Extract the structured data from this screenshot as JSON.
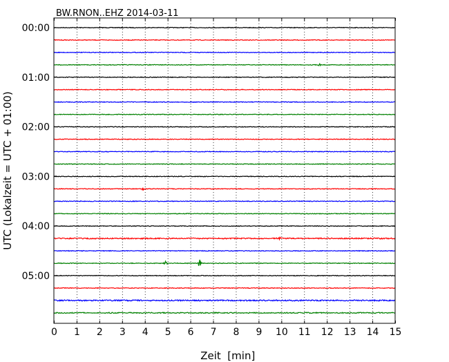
{
  "chart_data": {
    "type": "line",
    "title": "BW.RNON..EHZ 2014-03-11",
    "xlabel": "Zeit  [min]",
    "ylabel": "UTC (Lokalzeit = UTC + 01:00)",
    "xlim": [
      0,
      15
    ],
    "x_ticks": [
      "0",
      "1",
      "2",
      "3",
      "4",
      "5",
      "6",
      "7",
      "8",
      "9",
      "10",
      "11",
      "12",
      "13",
      "14",
      "15"
    ],
    "y_tick_labels": [
      "00:00",
      "01:00",
      "02:00",
      "03:00",
      "04:00",
      "05:00"
    ],
    "grid": "vertical dotted",
    "trace_colors": [
      "#000000",
      "#ff0000",
      "#0000ff",
      "#008000"
    ],
    "traces": [
      {
        "start": "00:00",
        "color": "#000000"
      },
      {
        "start": "00:15",
        "color": "#ff0000"
      },
      {
        "start": "00:30",
        "color": "#0000ff"
      },
      {
        "start": "00:45",
        "color": "#008000",
        "events": [
          {
            "t": 11.7,
            "amp": 2
          }
        ]
      },
      {
        "start": "01:00",
        "color": "#000000"
      },
      {
        "start": "01:15",
        "color": "#ff0000"
      },
      {
        "start": "01:30",
        "color": "#0000ff"
      },
      {
        "start": "01:45",
        "color": "#008000"
      },
      {
        "start": "02:00",
        "color": "#000000"
      },
      {
        "start": "02:15",
        "color": "#ff0000"
      },
      {
        "start": "02:30",
        "color": "#0000ff"
      },
      {
        "start": "02:45",
        "color": "#008000"
      },
      {
        "start": "03:00",
        "color": "#000000"
      },
      {
        "start": "03:15",
        "color": "#ff0000",
        "events": [
          {
            "t": 3.9,
            "amp": 3
          }
        ]
      },
      {
        "start": "03:30",
        "color": "#0000ff"
      },
      {
        "start": "03:45",
        "color": "#008000"
      },
      {
        "start": "04:00",
        "color": "#000000"
      },
      {
        "start": "04:15",
        "color": "#ff0000",
        "events": [
          {
            "t": 9.9,
            "amp": 5
          }
        ],
        "noise": 1.6
      },
      {
        "start": "04:30",
        "color": "#0000ff"
      },
      {
        "start": "04:45",
        "color": "#008000",
        "events": [
          {
            "t": 4.9,
            "amp": 4
          },
          {
            "t": 6.4,
            "amp": 6
          }
        ]
      },
      {
        "start": "05:00",
        "color": "#000000"
      },
      {
        "start": "05:15",
        "color": "#ff0000"
      },
      {
        "start": "05:30",
        "color": "#0000ff",
        "noise": 1.8
      },
      {
        "start": "05:45",
        "color": "#008000",
        "noise": 1.5
      }
    ]
  }
}
